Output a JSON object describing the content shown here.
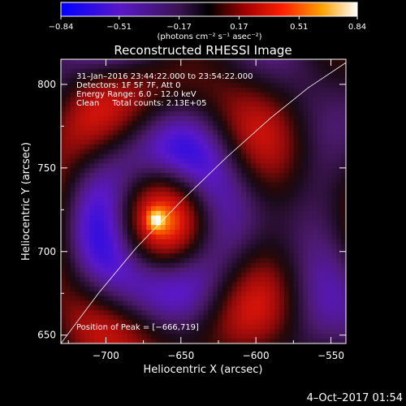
{
  "chart_data": {
    "type": "heatmap",
    "title": "Reconstructed RHESSI Image",
    "xlabel": "Heliocentric X (arcsec)",
    "ylabel": "Heliocentric Y (arcsec)",
    "xlim": [
      -730,
      -540
    ],
    "ylim": [
      645,
      815
    ],
    "x_ticks": [
      -700,
      -650,
      -600,
      -550
    ],
    "x_tick_labels": [
      "−700",
      "−650",
      "−600",
      "−550"
    ],
    "y_ticks": [
      650,
      700,
      750,
      800
    ],
    "y_tick_labels": [
      "650",
      "700",
      "750",
      "800"
    ],
    "colorbar": {
      "range": [
        -0.84,
        0.84
      ],
      "ticks": [
        -0.84,
        -0.51,
        -0.17,
        0.17,
        0.51,
        0.84
      ],
      "tick_labels": [
        "−0.84",
        "−0.51",
        "−0.17",
        "0.17",
        "0.51",
        "0.84"
      ],
      "unit_label": "(photons cm⁻² s⁻¹ asec⁻²)"
    },
    "info_lines": [
      "31–Jan–2016 23:44:22.000 to 23:54:22.000",
      "Detectors: 1F 5F 7F, Att 0",
      "Energy Range: 6.0 – 12.0 keV",
      "Clean     Total counts: 2.13E+05"
    ],
    "peak_label": "Position of Peak = [−666,719]",
    "peak": {
      "x": -666,
      "y": 719
    },
    "limb_curve": [
      {
        "x": -730,
        "y": 645
      },
      {
        "x": -705,
        "y": 675
      },
      {
        "x": -680,
        "y": 702
      },
      {
        "x": -650,
        "y": 730
      },
      {
        "x": -620,
        "y": 756
      },
      {
        "x": -590,
        "y": 780
      },
      {
        "x": -565,
        "y": 798
      },
      {
        "x": -540,
        "y": 813
      }
    ],
    "grid": false
  },
  "timestamp": "4–Oct–2017 01:54",
  "colors": {
    "background": "#000000",
    "text": "#ffffff",
    "colormap": [
      "#0000ff",
      "#5a18c8",
      "#4c1a6e",
      "#1a0a18",
      "#400808",
      "#cc1010",
      "#ff3000",
      "#ff9000",
      "#ffffff"
    ]
  }
}
